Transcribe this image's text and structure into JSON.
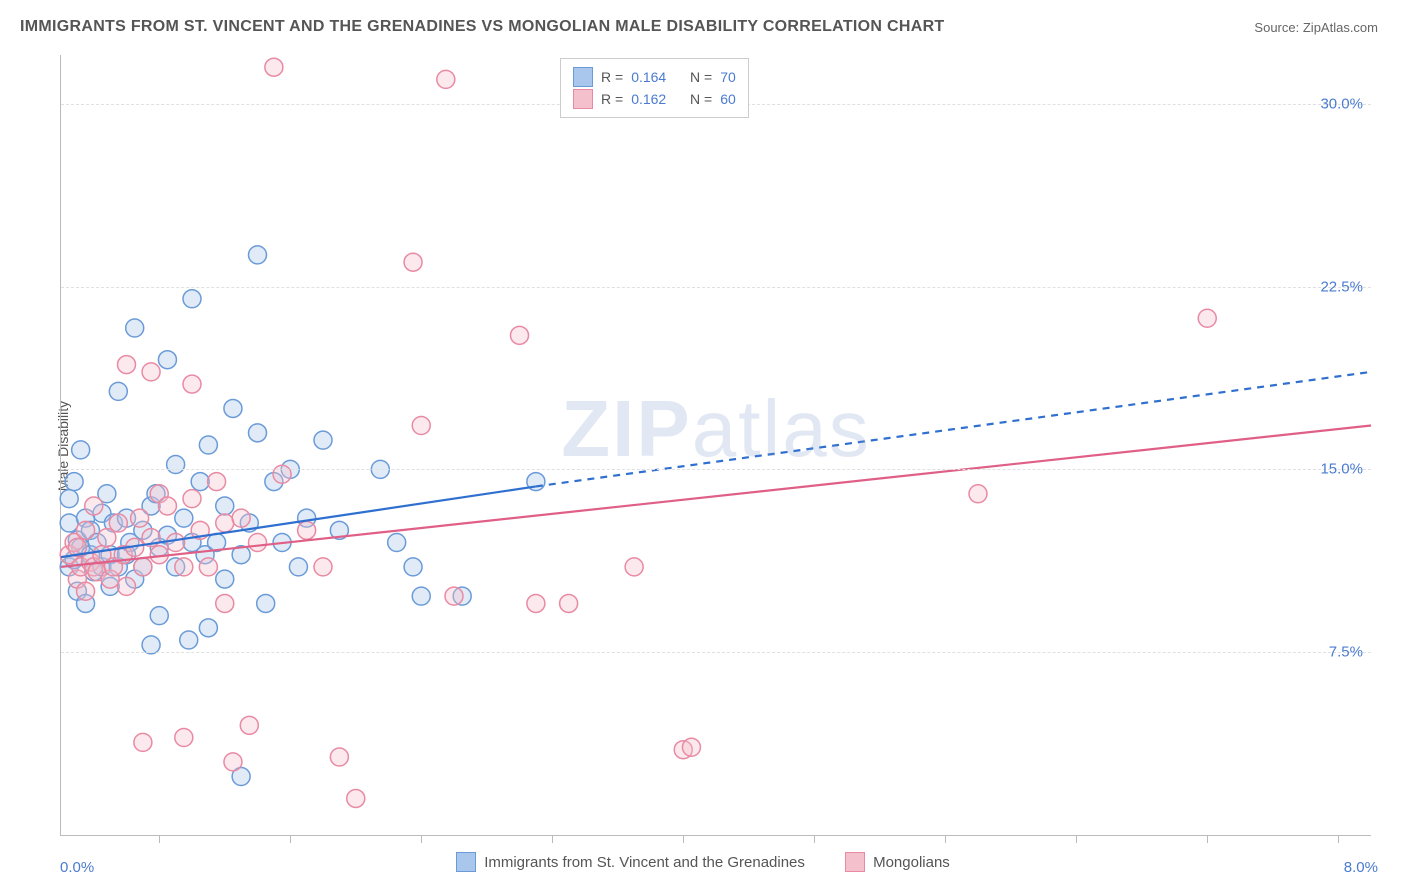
{
  "title": "IMMIGRANTS FROM ST. VINCENT AND THE GRENADINES VS MONGOLIAN MALE DISABILITY CORRELATION CHART",
  "source_label": "Source:",
  "source_value": "ZipAtlas.com",
  "watermark": "ZIPatlas",
  "chart": {
    "type": "scatter",
    "ylabel": "Male Disability",
    "xlim": [
      0.0,
      8.0
    ],
    "ylim": [
      0.0,
      32.0
    ],
    "xaxis_min_label": "0.0%",
    "xaxis_max_label": "8.0%",
    "ytick_values": [
      7.5,
      15.0,
      22.5,
      30.0
    ],
    "ytick_labels": [
      "7.5%",
      "15.0%",
      "22.5%",
      "30.0%"
    ],
    "xtick_values": [
      0.6,
      1.4,
      2.2,
      3.0,
      3.8,
      4.6,
      5.4,
      6.2,
      7.0,
      7.8
    ],
    "grid_color": "#e0e0e0",
    "axis_color": "#bbbbbb",
    "background_color": "#ffffff",
    "tick_label_color": "#4a7bd0",
    "label_fontsize": 14,
    "title_fontsize": 16,
    "marker_radius": 9,
    "marker_fill_opacity": 0.35,
    "marker_stroke_width": 1.5,
    "line_width": 2.2,
    "series": [
      {
        "name": "Immigrants from St. Vincent and the Grenadines",
        "color_fill": "#a9c6ec",
        "color_stroke": "#6a9bd8",
        "line_color": "#2e6fd0",
        "R_label": "R =",
        "R": "0.164",
        "N_label": "N =",
        "N": "70",
        "trend": {
          "x1": 0.0,
          "y1": 11.4,
          "x2": 2.9,
          "y2": 14.3,
          "x_dash_end": 8.0,
          "y_dash_end": 19.0
        },
        "points": [
          [
            0.05,
            12.8
          ],
          [
            0.05,
            11.0
          ],
          [
            0.05,
            13.8
          ],
          [
            0.08,
            14.5
          ],
          [
            0.08,
            11.3
          ],
          [
            0.1,
            12.1
          ],
          [
            0.1,
            10.0
          ],
          [
            0.12,
            15.8
          ],
          [
            0.12,
            11.8
          ],
          [
            0.15,
            13.0
          ],
          [
            0.15,
            9.5
          ],
          [
            0.18,
            11.5
          ],
          [
            0.18,
            12.5
          ],
          [
            0.2,
            10.8
          ],
          [
            0.22,
            12.0
          ],
          [
            0.25,
            11.0
          ],
          [
            0.25,
            13.2
          ],
          [
            0.28,
            14.0
          ],
          [
            0.3,
            11.5
          ],
          [
            0.3,
            10.2
          ],
          [
            0.32,
            12.8
          ],
          [
            0.35,
            11.0
          ],
          [
            0.35,
            18.2
          ],
          [
            0.4,
            11.5
          ],
          [
            0.4,
            13.0
          ],
          [
            0.42,
            12.0
          ],
          [
            0.45,
            10.5
          ],
          [
            0.45,
            20.8
          ],
          [
            0.5,
            12.5
          ],
          [
            0.5,
            11.0
          ],
          [
            0.55,
            13.5
          ],
          [
            0.55,
            7.8
          ],
          [
            0.58,
            14.0
          ],
          [
            0.6,
            11.8
          ],
          [
            0.6,
            9.0
          ],
          [
            0.65,
            12.3
          ],
          [
            0.65,
            19.5
          ],
          [
            0.7,
            11.0
          ],
          [
            0.7,
            15.2
          ],
          [
            0.75,
            13.0
          ],
          [
            0.78,
            8.0
          ],
          [
            0.8,
            12.0
          ],
          [
            0.8,
            22.0
          ],
          [
            0.85,
            14.5
          ],
          [
            0.88,
            11.5
          ],
          [
            0.9,
            8.5
          ],
          [
            0.9,
            16.0
          ],
          [
            0.95,
            12.0
          ],
          [
            1.0,
            13.5
          ],
          [
            1.0,
            10.5
          ],
          [
            1.05,
            17.5
          ],
          [
            1.1,
            2.4
          ],
          [
            1.1,
            11.5
          ],
          [
            1.15,
            12.8
          ],
          [
            1.2,
            23.8
          ],
          [
            1.2,
            16.5
          ],
          [
            1.25,
            9.5
          ],
          [
            1.3,
            14.5
          ],
          [
            1.35,
            12.0
          ],
          [
            1.4,
            15.0
          ],
          [
            1.45,
            11.0
          ],
          [
            1.5,
            13.0
          ],
          [
            1.6,
            16.2
          ],
          [
            1.7,
            12.5
          ],
          [
            1.95,
            15.0
          ],
          [
            2.05,
            12.0
          ],
          [
            2.15,
            11.0
          ],
          [
            2.2,
            9.8
          ],
          [
            2.45,
            9.8
          ],
          [
            2.9,
            14.5
          ]
        ]
      },
      {
        "name": "Mongolians",
        "color_fill": "#f4c0cc",
        "color_stroke": "#e98aa3",
        "line_color": "#e05f86",
        "R_label": "R =",
        "R": "0.162",
        "N_label": "N =",
        "N": "60",
        "trend": {
          "x1": 0.0,
          "y1": 11.0,
          "x2": 8.0,
          "y2": 16.8,
          "x_dash_end": 8.0,
          "y_dash_end": 16.8
        },
        "points": [
          [
            0.05,
            11.5
          ],
          [
            0.08,
            12.0
          ],
          [
            0.1,
            10.5
          ],
          [
            0.1,
            11.8
          ],
          [
            0.12,
            11.0
          ],
          [
            0.15,
            12.5
          ],
          [
            0.15,
            10.0
          ],
          [
            0.18,
            11.2
          ],
          [
            0.2,
            11.0
          ],
          [
            0.2,
            13.5
          ],
          [
            0.22,
            10.8
          ],
          [
            0.25,
            11.5
          ],
          [
            0.28,
            12.2
          ],
          [
            0.3,
            10.5
          ],
          [
            0.32,
            11.0
          ],
          [
            0.35,
            12.8
          ],
          [
            0.38,
            11.5
          ],
          [
            0.4,
            10.2
          ],
          [
            0.4,
            19.3
          ],
          [
            0.45,
            11.8
          ],
          [
            0.48,
            13.0
          ],
          [
            0.5,
            11.0
          ],
          [
            0.5,
            3.8
          ],
          [
            0.55,
            12.2
          ],
          [
            0.55,
            19.0
          ],
          [
            0.6,
            11.5
          ],
          [
            0.6,
            14.0
          ],
          [
            0.65,
            13.5
          ],
          [
            0.7,
            12.0
          ],
          [
            0.75,
            11.0
          ],
          [
            0.75,
            4.0
          ],
          [
            0.8,
            13.8
          ],
          [
            0.8,
            18.5
          ],
          [
            0.85,
            12.5
          ],
          [
            0.9,
            11.0
          ],
          [
            0.95,
            14.5
          ],
          [
            1.0,
            12.8
          ],
          [
            1.0,
            9.5
          ],
          [
            1.05,
            3.0
          ],
          [
            1.1,
            13.0
          ],
          [
            1.15,
            4.5
          ],
          [
            1.2,
            12.0
          ],
          [
            1.3,
            31.5
          ],
          [
            1.35,
            14.8
          ],
          [
            1.5,
            12.5
          ],
          [
            1.6,
            11.0
          ],
          [
            1.7,
            3.2
          ],
          [
            1.8,
            1.5
          ],
          [
            2.15,
            23.5
          ],
          [
            2.2,
            16.8
          ],
          [
            2.35,
            31.0
          ],
          [
            2.4,
            9.8
          ],
          [
            2.8,
            20.5
          ],
          [
            2.9,
            9.5
          ],
          [
            3.1,
            9.5
          ],
          [
            3.5,
            11.0
          ],
          [
            3.8,
            3.5
          ],
          [
            3.85,
            3.6
          ],
          [
            5.6,
            14.0
          ],
          [
            7.0,
            21.2
          ]
        ]
      }
    ]
  },
  "legend_bottom": {
    "items": [
      {
        "label": "Immigrants from St. Vincent and the Grenadines",
        "fill": "#a9c6ec",
        "stroke": "#6a9bd8"
      },
      {
        "label": "Mongolians",
        "fill": "#f4c0cc",
        "stroke": "#e98aa3"
      }
    ]
  }
}
